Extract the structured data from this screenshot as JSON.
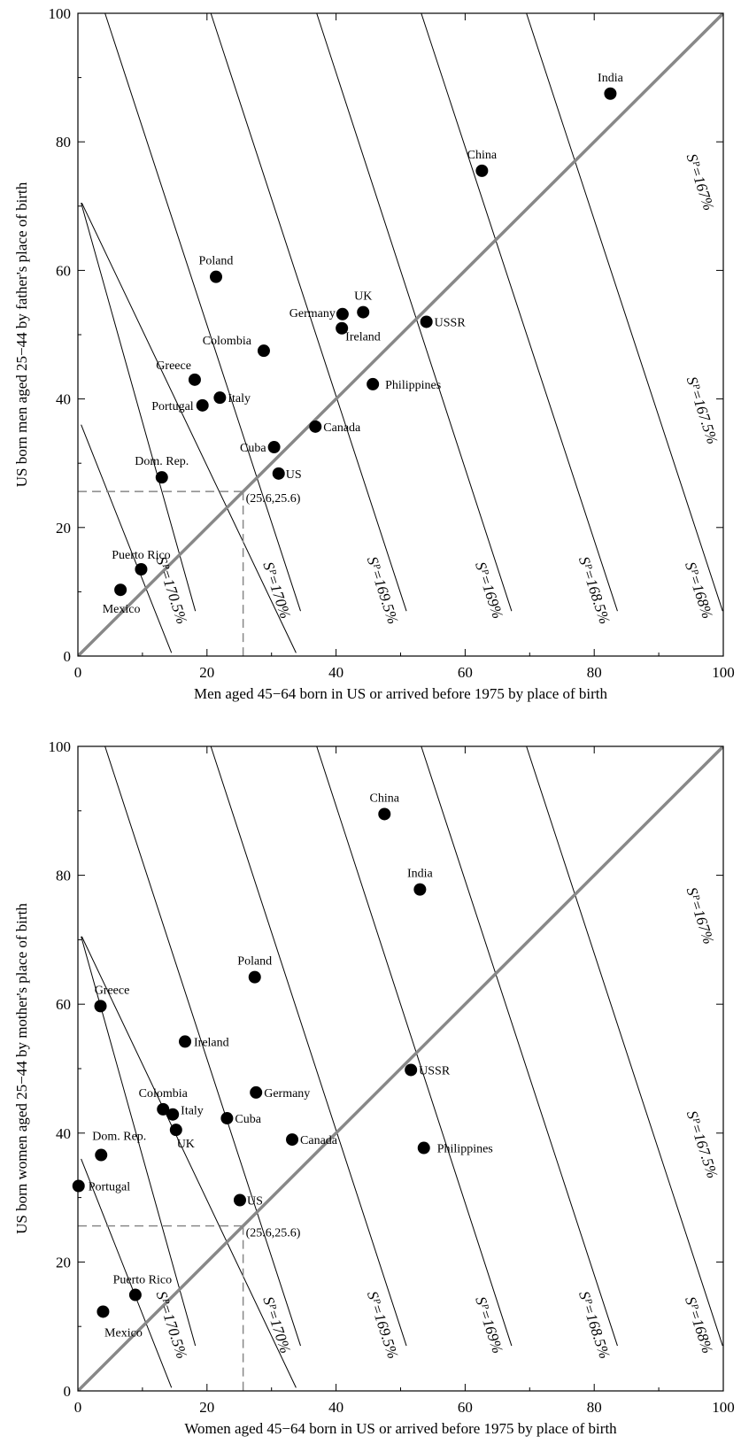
{
  "chart_data": [
    {
      "type": "scatter",
      "xlabel": "Men aged 45−64 born in US or arrived before 1975 by place of birth",
      "ylabel": "US born men aged 25−44 by father's place of birth",
      "xlim": [
        0,
        100
      ],
      "ylim": [
        0,
        100
      ],
      "xticks": [
        "0",
        "20",
        "40",
        "60",
        "80",
        "100"
      ],
      "yticks": [
        "0",
        "20",
        "40",
        "60",
        "80",
        "100"
      ],
      "points": [
        {
          "label": "India",
          "x": 82.5,
          "y": 87.5
        },
        {
          "label": "China",
          "x": 62.6,
          "y": 75.5
        },
        {
          "label": "Poland",
          "x": 21.4,
          "y": 59.0
        },
        {
          "label": "UK",
          "x": 44.2,
          "y": 53.5
        },
        {
          "label": "Germany",
          "x": 41.0,
          "y": 53.2
        },
        {
          "label": "Ireland",
          "x": 40.9,
          "y": 51.0
        },
        {
          "label": "USSR",
          "x": 54.0,
          "y": 52.0
        },
        {
          "label": "Colombia",
          "x": 28.8,
          "y": 47.5
        },
        {
          "label": "Philippines",
          "x": 45.7,
          "y": 42.3
        },
        {
          "label": "Greece",
          "x": 18.1,
          "y": 43.0
        },
        {
          "label": "Italy",
          "x": 22.0,
          "y": 40.2
        },
        {
          "label": "Portugal",
          "x": 19.3,
          "y": 39.0
        },
        {
          "label": "Canada",
          "x": 36.8,
          "y": 35.7
        },
        {
          "label": "Cuba",
          "x": 30.4,
          "y": 32.5
        },
        {
          "label": "US",
          "x": 31.1,
          "y": 28.4
        },
        {
          "label": "Dom. Rep.",
          "x": 13.0,
          "y": 27.8
        },
        {
          "label": "Puerto Rico",
          "x": 9.8,
          "y": 13.5
        },
        {
          "label": "Mexico",
          "x": 6.6,
          "y": 10.3
        }
      ],
      "reference_point": {
        "label": "(25.6,25.6)",
        "x": 25.6,
        "y": 25.6
      },
      "isolines": [
        "Sᴾ=167%",
        "Sᴾ=167.5%",
        "Sᴾ=168%",
        "Sᴾ=168.5%",
        "Sᴾ=169%",
        "Sᴾ=169.5%",
        "Sᴾ=170%",
        "Sᴾ=170.5%"
      ],
      "grid": false
    },
    {
      "type": "scatter",
      "xlabel": "Women aged 45−64 born in US or arrived before 1975 by place of birth",
      "ylabel": "US born women aged 25−44 by mother's place of birth",
      "xlim": [
        0,
        100
      ],
      "ylim": [
        0,
        100
      ],
      "xticks": [
        "0",
        "20",
        "40",
        "60",
        "80",
        "100"
      ],
      "yticks": [
        "0",
        "20",
        "40",
        "60",
        "80",
        "100"
      ],
      "points": [
        {
          "label": "China",
          "x": 47.5,
          "y": 89.5
        },
        {
          "label": "India",
          "x": 53.0,
          "y": 77.8
        },
        {
          "label": "Poland",
          "x": 27.4,
          "y": 64.2
        },
        {
          "label": "Greece",
          "x": 3.5,
          "y": 59.7
        },
        {
          "label": "Ireland",
          "x": 16.6,
          "y": 54.2
        },
        {
          "label": "USSR",
          "x": 51.6,
          "y": 49.8
        },
        {
          "label": "Germany",
          "x": 27.6,
          "y": 46.3
        },
        {
          "label": "Colombia",
          "x": 13.2,
          "y": 43.7
        },
        {
          "label": "Italy",
          "x": 14.7,
          "y": 42.9
        },
        {
          "label": "Cuba",
          "x": 23.1,
          "y": 42.3
        },
        {
          "label": "UK",
          "x": 15.2,
          "y": 40.5
        },
        {
          "label": "Canada",
          "x": 33.2,
          "y": 39.0
        },
        {
          "label": "Philippines",
          "x": 53.6,
          "y": 37.7
        },
        {
          "label": "Dom. Rep.",
          "x": 3.6,
          "y": 36.6
        },
        {
          "label": "Portugal",
          "x": 0.1,
          "y": 31.8
        },
        {
          "label": "US",
          "x": 25.1,
          "y": 29.6
        },
        {
          "label": "Puerto Rico",
          "x": 8.9,
          "y": 14.9
        },
        {
          "label": "Mexico",
          "x": 3.9,
          "y": 12.3
        }
      ],
      "reference_point": {
        "label": "(25.6,25.6)",
        "x": 25.6,
        "y": 25.6
      },
      "isolines": [
        "Sᴾ=167%",
        "Sᴾ=167.5%",
        "Sᴾ=168%",
        "Sᴾ=168.5%",
        "Sᴾ=169%",
        "Sᴾ=169.5%",
        "Sᴾ=170%",
        "Sᴾ=170.5%"
      ],
      "grid": false
    }
  ]
}
